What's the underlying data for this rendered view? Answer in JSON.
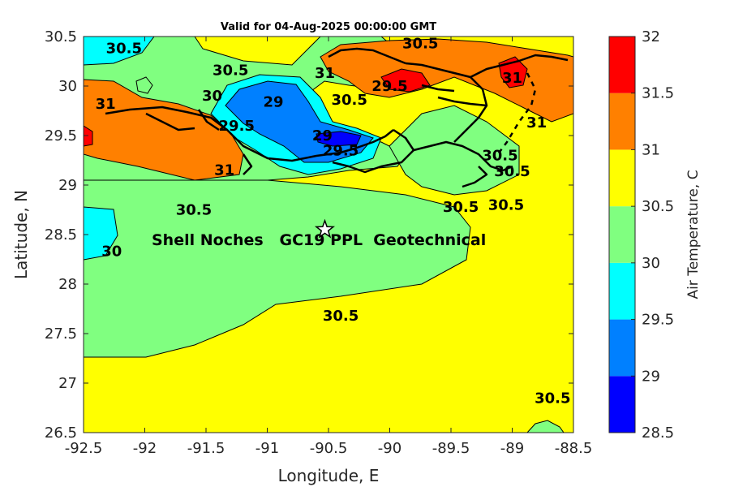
{
  "chart_data": {
    "type": "heatmap",
    "title": "Valid for 04-Aug-2025 00:00:00 GMT",
    "xlabel": "Longitude, E",
    "ylabel": "Latitude, N",
    "xlim": [
      -92.5,
      -88.5
    ],
    "ylim": [
      26.5,
      30.5
    ],
    "x_ticks": [
      "-92.5",
      "-92",
      "-91.5",
      "-91",
      "-90.5",
      "-90",
      "-89.5",
      "-89",
      "-88.5"
    ],
    "y_ticks": [
      "26.5",
      "27",
      "27.5",
      "28",
      "28.5",
      "29",
      "29.5",
      "30",
      "30.5"
    ],
    "colorbar": {
      "label": "Air Temperature, C",
      "levels": [
        "28.5",
        "29",
        "29.5",
        "30",
        "30.5",
        "31",
        "31.5",
        "32"
      ],
      "colors": [
        "#0000ff",
        "#0080ff",
        "#00ffff",
        "#80ff80",
        "#ffff00",
        "#ff8000",
        "#ff0000",
        "#800000"
      ]
    },
    "contour_labels": [
      {
        "text": "30.5",
        "lon": -92.17,
        "lat": 30.38
      },
      {
        "text": "30.5",
        "lon": -91.3,
        "lat": 30.16
      },
      {
        "text": "30.5",
        "lon": -89.75,
        "lat": 30.43
      },
      {
        "text": "31",
        "lon": -90.53,
        "lat": 30.13
      },
      {
        "text": "30.5",
        "lon": -90.33,
        "lat": 29.86
      },
      {
        "text": "31",
        "lon": -92.32,
        "lat": 29.82
      },
      {
        "text": "30",
        "lon": -91.45,
        "lat": 29.9
      },
      {
        "text": "29",
        "lon": -90.95,
        "lat": 29.84
      },
      {
        "text": "29.5",
        "lon": -91.25,
        "lat": 29.6
      },
      {
        "text": "29",
        "lon": -90.55,
        "lat": 29.5
      },
      {
        "text": "29.5",
        "lon": -90.4,
        "lat": 29.35
      },
      {
        "text": "31",
        "lon": -91.35,
        "lat": 29.15
      },
      {
        "text": "29.5",
        "lon": -90.0,
        "lat": 30.0
      },
      {
        "text": "31",
        "lon": -89.0,
        "lat": 30.08
      },
      {
        "text": "30.5",
        "lon": -89.1,
        "lat": 29.3
      },
      {
        "text": "31",
        "lon": -88.8,
        "lat": 29.63
      },
      {
        "text": "30.5",
        "lon": -89.0,
        "lat": 29.14
      },
      {
        "text": "30.5",
        "lon": -91.6,
        "lat": 28.75
      },
      {
        "text": "30.5",
        "lon": -89.42,
        "lat": 28.78
      },
      {
        "text": "30.5",
        "lon": -89.05,
        "lat": 28.8
      },
      {
        "text": "30",
        "lon": -92.27,
        "lat": 28.33
      },
      {
        "text": "30.5",
        "lon": -90.4,
        "lat": 27.68
      },
      {
        "text": "30.5",
        "lon": -88.67,
        "lat": 26.85
      }
    ],
    "marker": {
      "symbol": "star",
      "lon": -90.53,
      "lat": 28.55
    },
    "annotation": "Shell Noches   GC19 PPL  Geotechnical"
  }
}
